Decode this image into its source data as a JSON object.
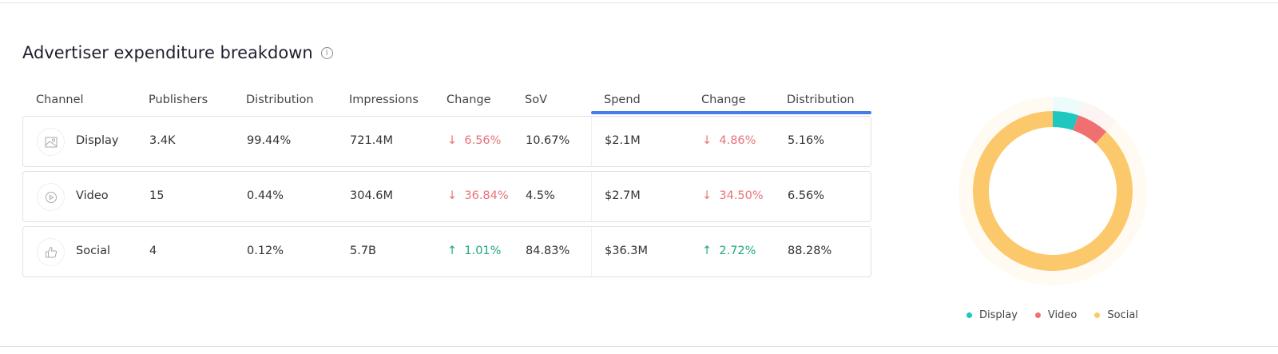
{
  "title": "Advertiser expenditure breakdown",
  "info_icon": "info-circle-icon",
  "columns": [
    "Channel",
    "Publishers",
    "Distribution",
    "Impressions",
    "Change",
    "SoV",
    "Spend",
    "Change",
    "Distribution"
  ],
  "rows": [
    {
      "channel": "Display",
      "icon": "image-icon",
      "publishers": "3.4K",
      "distribution": "99.44%",
      "impressions": "721.4M",
      "change": "6.56%",
      "change_dir": "down",
      "sov": "10.67%",
      "spend": "$2.1M",
      "spend_change": "4.86%",
      "spend_change_dir": "down",
      "spend_distribution": "5.16%"
    },
    {
      "channel": "Video",
      "icon": "play-circle-icon",
      "publishers": "15",
      "distribution": "0.44%",
      "impressions": "304.6M",
      "change": "36.84%",
      "change_dir": "down",
      "sov": "4.5%",
      "spend": "$2.7M",
      "spend_change": "34.50%",
      "spend_change_dir": "down",
      "spend_distribution": "6.56%"
    },
    {
      "channel": "Social",
      "icon": "thumbs-up-icon",
      "publishers": "4",
      "distribution": "0.12%",
      "impressions": "5.7B",
      "change": "1.01%",
      "change_dir": "up",
      "sov": "84.83%",
      "spend": "$36.3M",
      "spend_change": "2.72%",
      "spend_change_dir": "up",
      "spend_distribution": "88.28%"
    }
  ],
  "arrows": {
    "down": "↓",
    "up": "↑"
  },
  "colors": {
    "accent": "#4a7be8",
    "down": "#e8737a",
    "up": "#1ea982"
  },
  "chart_data": {
    "type": "pie",
    "variant": "donut",
    "categories": [
      "Display",
      "Video",
      "Social"
    ],
    "values": [
      5.16,
      6.56,
      88.28
    ],
    "colors": [
      "#1ec8c0",
      "#f07070",
      "#fbc96b"
    ],
    "legend": "bottom"
  }
}
